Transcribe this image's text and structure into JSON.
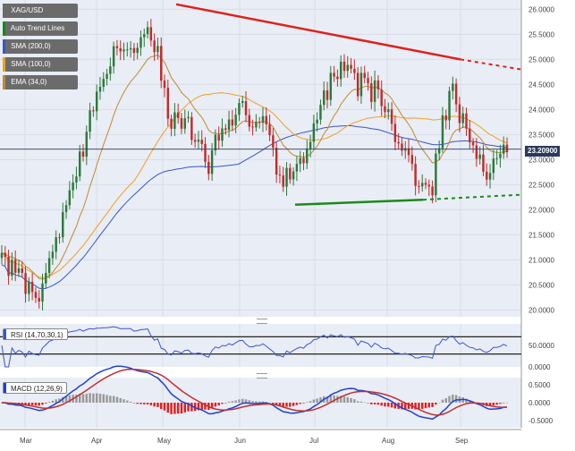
{
  "chart_data": [
    {
      "type": "candlestick",
      "symbol": "XAG/USD",
      "x_labels": [
        "Mar",
        "Apr",
        "May",
        "Jun",
        "Jul",
        "Aug",
        "Sep"
      ],
      "y_ticks": [
        "26.0000",
        "25.5000",
        "25.0000",
        "24.5000",
        "24.0000",
        "23.5000",
        "23.0000",
        "22.5000",
        "22.0000",
        "21.5000",
        "21.0000",
        "20.5000",
        "20.0000"
      ],
      "ylim": [
        19.9,
        26.15
      ],
      "last_price": "23.20900",
      "approx_close_by_week": [
        {
          "week": "Mar-1",
          "close": 21.0
        },
        {
          "week": "Mar-2",
          "close": 20.7
        },
        {
          "week": "Mar-3",
          "close": 20.1
        },
        {
          "week": "Mar-4",
          "close": 21.6
        },
        {
          "week": "Apr-1",
          "close": 22.8
        },
        {
          "week": "Apr-2",
          "close": 24.2
        },
        {
          "week": "Apr-3",
          "close": 25.3
        },
        {
          "week": "Apr-4",
          "close": 25.0
        },
        {
          "week": "May-1",
          "close": 25.6
        },
        {
          "week": "May-2",
          "close": 23.8
        },
        {
          "week": "May-3",
          "close": 23.7
        },
        {
          "week": "May-4",
          "close": 22.9
        },
        {
          "week": "Jun-1",
          "close": 23.7
        },
        {
          "week": "Jun-2",
          "close": 24.0
        },
        {
          "week": "Jun-3",
          "close": 23.6
        },
        {
          "week": "Jun-4",
          "close": 22.6
        },
        {
          "week": "Jul-1",
          "close": 22.8
        },
        {
          "week": "Jul-2",
          "close": 23.9
        },
        {
          "week": "Jul-3",
          "close": 24.9
        },
        {
          "week": "Jul-4",
          "close": 24.5
        },
        {
          "week": "Aug-1",
          "close": 24.4
        },
        {
          "week": "Aug-2",
          "close": 23.4
        },
        {
          "week": "Aug-3",
          "close": 22.7
        },
        {
          "week": "Aug-4",
          "close": 22.5
        },
        {
          "week": "Sep-1",
          "close": 24.6
        },
        {
          "week": "Sep-2",
          "close": 23.2
        },
        {
          "week": "Sep-3",
          "close": 22.8
        },
        {
          "week": "Sep-4",
          "close": 23.2
        }
      ],
      "trend_lines": [
        {
          "name": "resistance",
          "from": {
            "x": "May",
            "y": 26.1
          },
          "to": {
            "x": "Sep",
            "y": 25.0
          },
          "extension_to": 24.8,
          "color": "#e0201c"
        },
        {
          "name": "support",
          "from": {
            "x": "Jun",
            "y": 22.1
          },
          "to": {
            "x": "Aug",
            "y": 22.2
          },
          "extension_to": 22.3,
          "color": "#1a8a1a"
        }
      ],
      "indicators": [
        {
          "label": "SMA (200,0)",
          "color": "#3a56c8"
        },
        {
          "label": "SMA (100,0)",
          "color": "#f0a020"
        },
        {
          "label": "EMA (34,0)",
          "color": "#c08a30"
        }
      ],
      "legend_items": [
        {
          "label": "XAG/USD",
          "color": "#6b6b6b"
        },
        {
          "label": "Auto Trend Lines",
          "color": "#1a8a1a"
        },
        {
          "label": "SMA (200,0)",
          "color": "#3a56c8"
        },
        {
          "label": "SMA (100,0)",
          "color": "#f0a020"
        },
        {
          "label": "EMA (34,0)",
          "color": "#c08a30"
        }
      ]
    },
    {
      "type": "line",
      "name": "RSI (14,70,30,1)",
      "y_ticks": [
        "50.0000",
        "0.0000"
      ],
      "levels": [
        70,
        30
      ],
      "ylim": [
        0,
        100
      ]
    },
    {
      "type": "bar",
      "name": "MACD (12,26,9)",
      "y_ticks": [
        "0.5000",
        "0.0000",
        "-0.5000"
      ],
      "ylim": [
        -0.7,
        0.7
      ]
    }
  ],
  "colors": {
    "up": "#2a7a3a",
    "down": "#c42a2a",
    "bg": "#e9edf5",
    "grid": "#d8dde8",
    "macd_line": "#2040d0",
    "signal_line": "#c03030",
    "hist_pos": "#999999",
    "hist_neg": "#e02020",
    "rsi_line": "#3a56c8"
  }
}
